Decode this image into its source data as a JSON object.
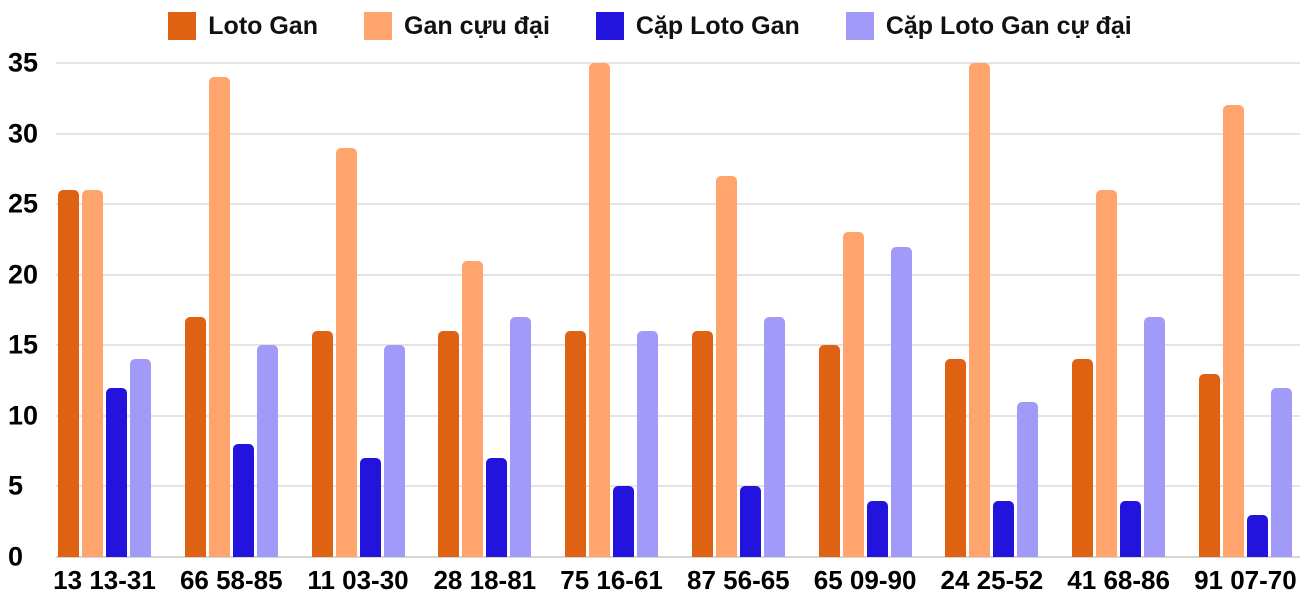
{
  "chart_data": {
    "type": "bar",
    "title": "",
    "xlabel": "",
    "ylabel": "",
    "ylim": [
      0,
      35
    ],
    "yticks": [
      0,
      5,
      10,
      15,
      20,
      25,
      30,
      35
    ],
    "grid": true,
    "legend_position": "top",
    "background_color": "#ffffff",
    "gridline_color": "#e4e4e4",
    "categories": [
      "13 13-31",
      "66 58-85",
      "11 03-30",
      "28 18-81",
      "75 16-61",
      "87 56-65",
      "65 09-90",
      "24 25-52",
      "41 68-86",
      "91 07-70"
    ],
    "series": [
      {
        "name": "Loto Gan",
        "color": "#df6112",
        "values": [
          26,
          17,
          16,
          16,
          16,
          16,
          15,
          14,
          14,
          13
        ]
      },
      {
        "name": "Gan cựu đại",
        "color": "#ffa46c",
        "values": [
          26,
          34,
          29,
          21,
          35,
          27,
          23,
          35,
          26,
          32
        ]
      },
      {
        "name": "Cặp Loto Gan",
        "color": "#2314dd",
        "values": [
          12,
          8,
          7,
          7,
          5,
          5,
          4,
          4,
          4,
          3
        ]
      },
      {
        "name": "Cặp Loto Gan cự đại",
        "color": "#a29af8",
        "values": [
          14,
          15,
          15,
          17,
          16,
          17,
          22,
          11,
          17,
          12
        ]
      }
    ]
  }
}
